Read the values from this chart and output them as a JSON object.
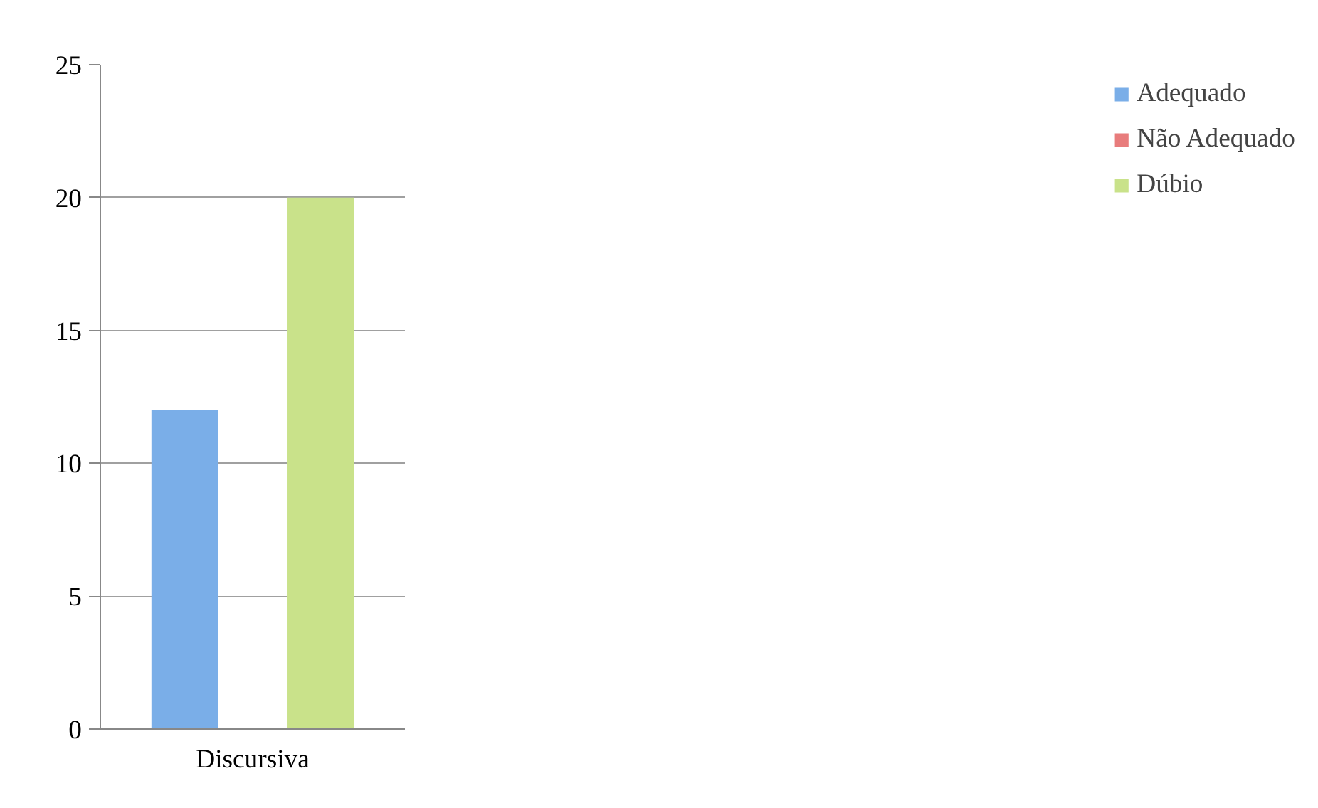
{
  "chart_data": {
    "type": "bar",
    "categories": [
      "Discursiva"
    ],
    "series": [
      {
        "name": "Adequado",
        "color": "#7aaee8",
        "values": [
          12
        ]
      },
      {
        "name": "Não Adequado",
        "color": "#e87c7c",
        "values": [
          0
        ]
      },
      {
        "name": "Dúbio",
        "color": "#c9e28a",
        "values": [
          20
        ]
      }
    ],
    "ylim": [
      0,
      25
    ],
    "yticks": [
      0,
      5,
      10,
      15,
      20,
      25
    ],
    "grid": "y",
    "legend": "right"
  }
}
